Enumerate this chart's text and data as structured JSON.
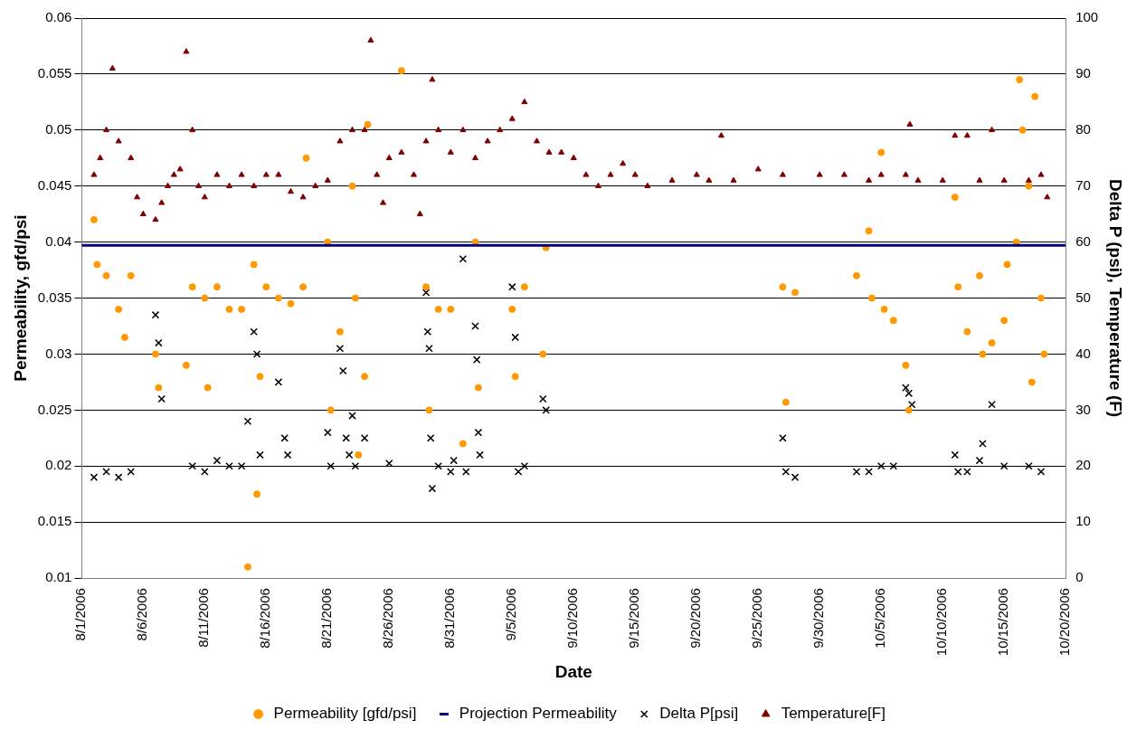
{
  "chart_data": {
    "type": "scatter",
    "xlabel": "Date",
    "ylabel": "Permeability, gfd/psi",
    "y2label": "Delta P (psi), Temperature (F)",
    "xlim": [
      "2006-08-01",
      "2006-10-20"
    ],
    "xticks": [
      {
        "value": "2006-08-01",
        "label": "8/1/2006"
      },
      {
        "value": "2006-08-06",
        "label": "8/6/2006"
      },
      {
        "value": "2006-08-11",
        "label": "8/11/2006"
      },
      {
        "value": "2006-08-16",
        "label": "8/16/2006"
      },
      {
        "value": "2006-08-21",
        "label": "8/21/2006"
      },
      {
        "value": "2006-08-26",
        "label": "8/26/2006"
      },
      {
        "value": "2006-08-31",
        "label": "8/31/2006"
      },
      {
        "value": "2006-09-05",
        "label": "9/5/2006"
      },
      {
        "value": "2006-09-10",
        "label": "9/10/2006"
      },
      {
        "value": "2006-09-15",
        "label": "9/15/2006"
      },
      {
        "value": "2006-09-20",
        "label": "9/20/2006"
      },
      {
        "value": "2006-09-25",
        "label": "9/25/2006"
      },
      {
        "value": "2006-09-30",
        "label": "9/30/2006"
      },
      {
        "value": "2006-10-05",
        "label": "10/5/2006"
      },
      {
        "value": "2006-10-10",
        "label": "10/10/2006"
      },
      {
        "value": "2006-10-15",
        "label": "10/15/2006"
      },
      {
        "value": "2006-10-20",
        "label": "10/20/2006"
      }
    ],
    "ylim": [
      0.01,
      0.06
    ],
    "yticks": [
      0.01,
      0.015,
      0.02,
      0.025,
      0.03,
      0.035,
      0.04,
      0.045,
      0.05,
      0.055,
      0.06
    ],
    "y2lim": [
      0,
      100
    ],
    "y2ticks": [
      0,
      10,
      20,
      30,
      40,
      50,
      60,
      70,
      80,
      90,
      100
    ],
    "grid": "y",
    "legend": "bottom",
    "series": [
      {
        "name": "Permeability [gfd/psi]",
        "type": "scatter",
        "marker": "circle",
        "color": "#ff9900",
        "x": [
          "2006-08-02T00:00",
          "2006-08-02T06:00",
          "2006-08-03T00:00",
          "2006-08-04T00:00",
          "2006-08-04T12:00",
          "2006-08-05T00:00",
          "2006-08-07T00:00",
          "2006-08-07T06:00",
          "2006-08-09T12:00",
          "2006-08-10T00:00",
          "2006-08-11T00:00",
          "2006-08-11T06:00",
          "2006-08-12T00:00",
          "2006-08-13T00:00",
          "2006-08-14T00:00",
          "2006-08-14T12:00",
          "2006-08-15T00:00",
          "2006-08-15T06:00",
          "2006-08-15T12:00",
          "2006-08-16T00:00",
          "2006-08-17T00:00",
          "2006-08-18T00:00",
          "2006-08-19T00:00",
          "2006-08-19T06:00",
          "2006-08-21T00:00",
          "2006-08-21T06:00",
          "2006-08-22T00:00",
          "2006-08-23T00:00",
          "2006-08-23T06:00",
          "2006-08-23T12:00",
          "2006-08-24T00:00",
          "2006-08-24T06:00",
          "2006-08-27T00:00",
          "2006-08-29T00:00",
          "2006-08-29T06:00",
          "2006-08-30T00:00",
          "2006-08-31T00:00",
          "2006-09-01T00:00",
          "2006-09-02T00:00",
          "2006-09-02T06:00",
          "2006-09-05T00:00",
          "2006-09-05T06:00",
          "2006-09-06T00:00",
          "2006-09-07T12:00",
          "2006-09-07T18:00",
          "2006-09-27T00:00",
          "2006-09-27T06:00",
          "2006-09-28T00:00",
          "2006-10-03T00:00",
          "2006-10-04T00:00",
          "2006-10-04T06:00",
          "2006-10-05T00:00",
          "2006-10-05T06:00",
          "2006-10-06T00:00",
          "2006-10-07T00:00",
          "2006-10-07T06:00",
          "2006-10-11T00:00",
          "2006-10-11T06:00",
          "2006-10-12T00:00",
          "2006-10-13T00:00",
          "2006-10-13T06:00",
          "2006-10-14T00:00",
          "2006-10-15T00:00",
          "2006-10-15T06:00",
          "2006-10-16T00:00",
          "2006-10-16T06:00",
          "2006-10-16T12:00",
          "2006-10-17T00:00",
          "2006-10-17T06:00",
          "2006-10-17T12:00",
          "2006-10-18T00:00",
          "2006-10-18T06:00"
        ],
        "values": [
          0.042,
          0.038,
          0.037,
          0.034,
          0.0315,
          0.037,
          0.03,
          0.027,
          0.029,
          0.036,
          0.035,
          0.027,
          0.036,
          0.034,
          0.034,
          0.011,
          0.038,
          0.0175,
          0.028,
          0.036,
          0.035,
          0.0345,
          0.036,
          0.0475,
          0.04,
          0.025,
          0.032,
          0.045,
          0.035,
          0.021,
          0.028,
          0.0505,
          0.0553,
          0.036,
          0.025,
          0.034,
          0.034,
          0.022,
          0.04,
          0.027,
          0.034,
          0.028,
          0.036,
          0.03,
          0.0395,
          0.036,
          0.0257,
          0.0355,
          0.037,
          0.041,
          0.035,
          0.048,
          0.034,
          0.033,
          0.029,
          0.025,
          0.044,
          0.036,
          0.032,
          0.037,
          0.03,
          0.031,
          0.033,
          0.038,
          0.04,
          0.0545,
          0.05,
          0.045,
          0.0275,
          0.053,
          0.035,
          0.03
        ]
      },
      {
        "name": "Projection Permeability",
        "type": "line",
        "marker": "none",
        "color": "#000080",
        "x": [
          "2006-08-01",
          "2006-10-20"
        ],
        "values": [
          0.0397,
          0.0397
        ]
      },
      {
        "name": "Delta P[psi]",
        "type": "scatter",
        "marker": "cross",
        "color": "#000000",
        "axis": "y2",
        "x": [
          "2006-08-02T00:00",
          "2006-08-03T00:00",
          "2006-08-04T00:00",
          "2006-08-05T00:00",
          "2006-08-07T00:00",
          "2006-08-07T06:00",
          "2006-08-07T12:00",
          "2006-08-10T00:00",
          "2006-08-11T00:00",
          "2006-08-12T00:00",
          "2006-08-13T00:00",
          "2006-08-14T00:00",
          "2006-08-14T12:00",
          "2006-08-15T00:00",
          "2006-08-15T06:00",
          "2006-08-15T12:00",
          "2006-08-17T00:00",
          "2006-08-17T12:00",
          "2006-08-17T18:00",
          "2006-08-21T00:00",
          "2006-08-21T06:00",
          "2006-08-22T00:00",
          "2006-08-22T06:00",
          "2006-08-22T12:00",
          "2006-08-22T18:00",
          "2006-08-23T00:00",
          "2006-08-23T06:00",
          "2006-08-24T00:00",
          "2006-08-26T00:00",
          "2006-08-29T00:00",
          "2006-08-29T03:00",
          "2006-08-29T06:00",
          "2006-08-29T09:00",
          "2006-08-29T12:00",
          "2006-08-30T00:00",
          "2006-08-31T00:00",
          "2006-08-31T06:00",
          "2006-09-01T00:00",
          "2006-09-01T06:00",
          "2006-09-02T00:00",
          "2006-09-02T03:00",
          "2006-09-02T06:00",
          "2006-09-02T09:00",
          "2006-09-05T00:00",
          "2006-09-05T06:00",
          "2006-09-05T12:00",
          "2006-09-06T00:00",
          "2006-09-07T12:00",
          "2006-09-07T18:00",
          "2006-09-27T00:00",
          "2006-09-27T06:00",
          "2006-09-28T00:00",
          "2006-10-03T00:00",
          "2006-10-04T00:00",
          "2006-10-05T00:00",
          "2006-10-06T00:00",
          "2006-10-07T00:00",
          "2006-10-07T06:00",
          "2006-10-07T12:00",
          "2006-10-11T00:00",
          "2006-10-11T06:00",
          "2006-10-12T00:00",
          "2006-10-13T00:00",
          "2006-10-13T06:00",
          "2006-10-14T00:00",
          "2006-10-15T00:00",
          "2006-10-17T00:00",
          "2006-10-18T00:00"
        ],
        "values": [
          18,
          19,
          18,
          19,
          47,
          42,
          32,
          20,
          19,
          21,
          20,
          20,
          28,
          44,
          40,
          22,
          35,
          25,
          22,
          26,
          20,
          41,
          37,
          25,
          22,
          29,
          20,
          25,
          20.5,
          51,
          44,
          41,
          25,
          16,
          20,
          19,
          21,
          57,
          19,
          45,
          39,
          26,
          22,
          52,
          43,
          19,
          20,
          32,
          30,
          25,
          19,
          18,
          19,
          19,
          20,
          20,
          34,
          33,
          31,
          22,
          19,
          19,
          21,
          24,
          31,
          20,
          20,
          19
        ]
      },
      {
        "name": "Temperature[F]",
        "type": "scatter",
        "marker": "triangle",
        "color": "#800000",
        "axis": "y2",
        "x": [
          "2006-08-02T00:00",
          "2006-08-02T12:00",
          "2006-08-03T00:00",
          "2006-08-03T12:00",
          "2006-08-04T00:00",
          "2006-08-05T00:00",
          "2006-08-05T12:00",
          "2006-08-06T00:00",
          "2006-08-07T00:00",
          "2006-08-07T12:00",
          "2006-08-08T00:00",
          "2006-08-08T12:00",
          "2006-08-09T00:00",
          "2006-08-09T12:00",
          "2006-08-10T00:00",
          "2006-08-10T12:00",
          "2006-08-11T00:00",
          "2006-08-12T00:00",
          "2006-08-13T00:00",
          "2006-08-14T00:00",
          "2006-08-15T00:00",
          "2006-08-16T00:00",
          "2006-08-17T00:00",
          "2006-08-18T00:00",
          "2006-08-19T00:00",
          "2006-08-20T00:00",
          "2006-08-21T00:00",
          "2006-08-22T00:00",
          "2006-08-23T00:00",
          "2006-08-24T00:00",
          "2006-08-24T12:00",
          "2006-08-25T00:00",
          "2006-08-25T12:00",
          "2006-08-26T00:00",
          "2006-08-27T00:00",
          "2006-08-28T00:00",
          "2006-08-28T12:00",
          "2006-08-29T00:00",
          "2006-08-29T12:00",
          "2006-08-30T00:00",
          "2006-08-31T00:00",
          "2006-09-01T00:00",
          "2006-09-02T00:00",
          "2006-09-03T00:00",
          "2006-09-04T00:00",
          "2006-09-05T00:00",
          "2006-09-06T00:00",
          "2006-09-07T00:00",
          "2006-09-08T00:00",
          "2006-09-09T00:00",
          "2006-09-10T00:00",
          "2006-09-11T00:00",
          "2006-09-12T00:00",
          "2006-09-13T00:00",
          "2006-09-14T00:00",
          "2006-09-15T00:00",
          "2006-09-16T00:00",
          "2006-09-18T00:00",
          "2006-09-20T00:00",
          "2006-09-21T00:00",
          "2006-09-22T00:00",
          "2006-09-23T00:00",
          "2006-09-25T00:00",
          "2006-09-27T00:00",
          "2006-09-30T00:00",
          "2006-10-02T00:00",
          "2006-10-04T00:00",
          "2006-10-05T00:00",
          "2006-10-07T00:00",
          "2006-10-07T08:00",
          "2006-10-08T00:00",
          "2006-10-10T00:00",
          "2006-10-11T00:00",
          "2006-10-12T00:00",
          "2006-10-13T00:00",
          "2006-10-14T00:00",
          "2006-10-15T00:00",
          "2006-10-17T00:00",
          "2006-10-18T00:00",
          "2006-10-18T12:00"
        ],
        "values": [
          72,
          75,
          80,
          91,
          78,
          75,
          68,
          65,
          64,
          67,
          70,
          72,
          73,
          94,
          80,
          70,
          68,
          72,
          70,
          72,
          70,
          72,
          72,
          69,
          68,
          70,
          71,
          78,
          80,
          80,
          96,
          72,
          67,
          75,
          76,
          72,
          65,
          78,
          89,
          80,
          76,
          80,
          75,
          78,
          80,
          82,
          85,
          78,
          76,
          76,
          75,
          72,
          70,
          72,
          74,
          72,
          70,
          71,
          72,
          71,
          79,
          71,
          73,
          72,
          72,
          72,
          71,
          72,
          72,
          81,
          71,
          71,
          79,
          79,
          71,
          80,
          71,
          71,
          72,
          68
        ]
      }
    ]
  }
}
